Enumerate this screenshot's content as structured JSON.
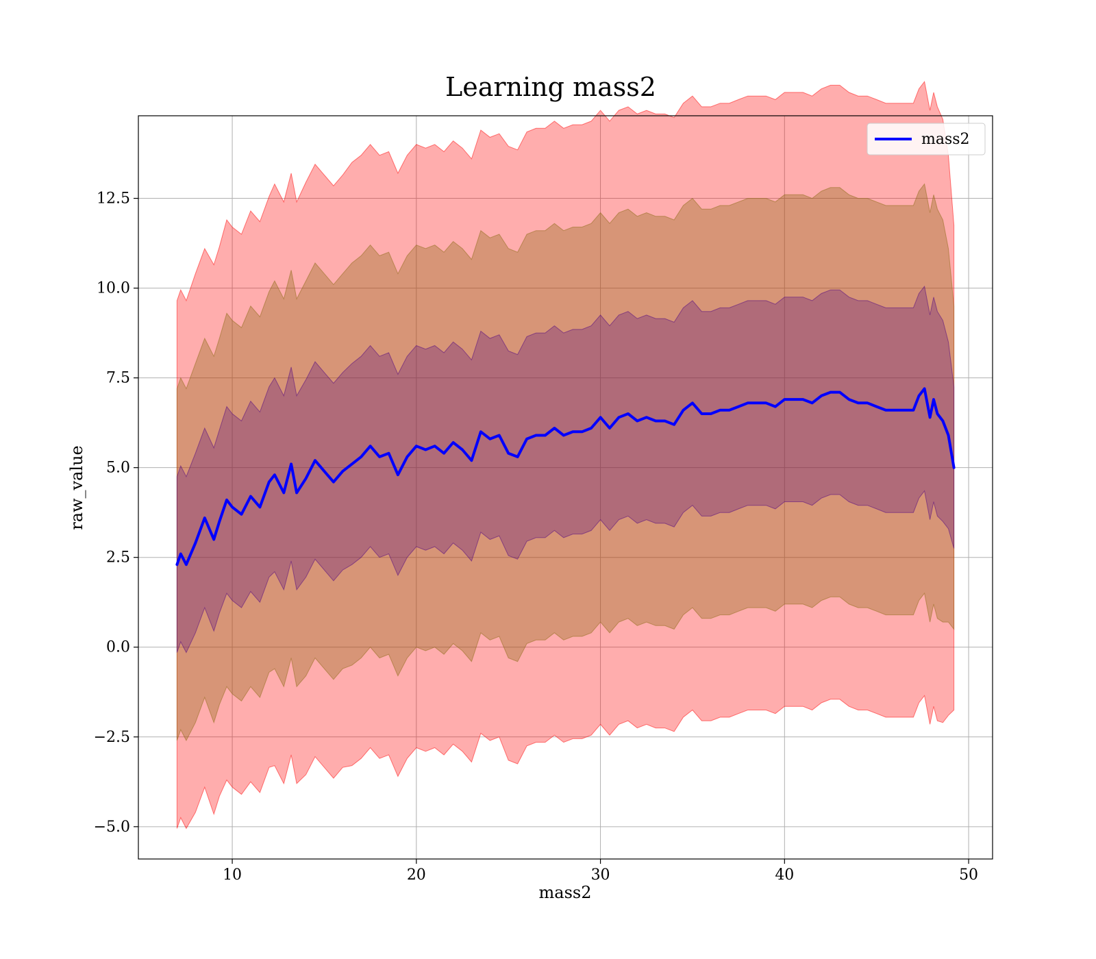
{
  "chart_data": {
    "type": "line",
    "title": "Learning mass2",
    "xlabel": "mass2",
    "ylabel": "raw_value",
    "xlim": [
      4.9,
      51.3
    ],
    "ylim": [
      -5.9,
      14.8
    ],
    "xticks": [
      10,
      20,
      30,
      40,
      50
    ],
    "xtick_labels": [
      "10",
      "20",
      "30",
      "40",
      "50"
    ],
    "yticks": [
      -5.0,
      -2.5,
      0.0,
      2.5,
      5.0,
      7.5,
      10.0,
      12.5
    ],
    "ytick_labels": [
      "−5.0",
      "−2.5",
      "0.0",
      "2.5",
      "5.0",
      "7.5",
      "10.0",
      "12.5"
    ],
    "grid": true,
    "legend": {
      "position": "top-right",
      "entries": [
        "mass2"
      ]
    },
    "series": [
      {
        "name": "mass2",
        "color": "#0000ff",
        "x": [
          7.0,
          7.2,
          7.5,
          8.0,
          8.5,
          9.0,
          9.3,
          9.7,
          10.0,
          10.5,
          11.0,
          11.5,
          12.0,
          12.3,
          12.8,
          13.2,
          13.5,
          14.0,
          14.5,
          15.0,
          15.5,
          16.0,
          16.5,
          17.0,
          17.5,
          18.0,
          18.5,
          19.0,
          19.5,
          20.0,
          20.5,
          21.0,
          21.5,
          22.0,
          22.5,
          23.0,
          23.5,
          24.0,
          24.5,
          25.0,
          25.5,
          26.0,
          26.5,
          27.0,
          27.5,
          28.0,
          28.5,
          29.0,
          29.5,
          30.0,
          30.5,
          31.0,
          31.5,
          32.0,
          32.5,
          33.0,
          33.5,
          34.0,
          34.5,
          35.0,
          35.5,
          36.0,
          36.5,
          37.0,
          37.5,
          38.0,
          38.5,
          39.0,
          39.5,
          40.0,
          40.5,
          41.0,
          41.5,
          42.0,
          42.5,
          43.0,
          43.5,
          44.0,
          44.5,
          45.0,
          45.5,
          46.0,
          46.5,
          47.0,
          47.3,
          47.6,
          47.9,
          48.1,
          48.3,
          48.6,
          48.9,
          49.2
        ],
        "mean": [
          2.3,
          2.6,
          2.3,
          2.9,
          3.6,
          3.0,
          3.5,
          4.1,
          3.9,
          3.7,
          4.2,
          3.9,
          4.6,
          4.8,
          4.3,
          5.1,
          4.3,
          4.7,
          5.2,
          4.9,
          4.6,
          4.9,
          5.1,
          5.3,
          5.6,
          5.3,
          5.4,
          4.8,
          5.3,
          5.6,
          5.5,
          5.6,
          5.4,
          5.7,
          5.5,
          5.2,
          6.0,
          5.8,
          5.9,
          5.4,
          5.3,
          5.8,
          5.9,
          5.9,
          6.1,
          5.9,
          6.0,
          6.0,
          6.1,
          6.4,
          6.1,
          6.4,
          6.5,
          6.3,
          6.4,
          6.3,
          6.3,
          6.2,
          6.6,
          6.8,
          6.5,
          6.5,
          6.6,
          6.6,
          6.7,
          6.8,
          6.8,
          6.8,
          6.7,
          6.9,
          6.9,
          6.9,
          6.8,
          7.0,
          7.1,
          7.1,
          6.9,
          6.8,
          6.8,
          6.7,
          6.6,
          6.6,
          6.6,
          6.6,
          7.0,
          7.2,
          6.4,
          6.9,
          6.5,
          6.3,
          5.9,
          5.0
        ],
        "std": [
          2.45,
          2.45,
          2.45,
          2.5,
          2.5,
          2.55,
          2.55,
          2.6,
          2.6,
          2.6,
          2.65,
          2.65,
          2.65,
          2.7,
          2.7,
          2.7,
          2.7,
          2.75,
          2.75,
          2.75,
          2.75,
          2.75,
          2.8,
          2.8,
          2.8,
          2.8,
          2.8,
          2.8,
          2.8,
          2.8,
          2.8,
          2.8,
          2.8,
          2.8,
          2.8,
          2.8,
          2.8,
          2.8,
          2.8,
          2.85,
          2.85,
          2.85,
          2.85,
          2.85,
          2.85,
          2.85,
          2.85,
          2.85,
          2.85,
          2.85,
          2.85,
          2.85,
          2.85,
          2.85,
          2.85,
          2.85,
          2.85,
          2.85,
          2.85,
          2.85,
          2.85,
          2.85,
          2.85,
          2.85,
          2.85,
          2.85,
          2.85,
          2.85,
          2.85,
          2.85,
          2.85,
          2.85,
          2.85,
          2.85,
          2.85,
          2.85,
          2.85,
          2.85,
          2.85,
          2.85,
          2.85,
          2.85,
          2.85,
          2.85,
          2.85,
          2.85,
          2.85,
          2.85,
          2.85,
          2.8,
          2.6,
          2.25
        ]
      }
    ],
    "bands": [
      {
        "sigma": 3,
        "color": "#ff0000",
        "alpha": 0.32
      },
      {
        "sigma": 2,
        "color": "#8b6914",
        "alpha": 0.35
      },
      {
        "sigma": 1,
        "color": "#4b0082",
        "alpha": 0.28
      }
    ]
  }
}
